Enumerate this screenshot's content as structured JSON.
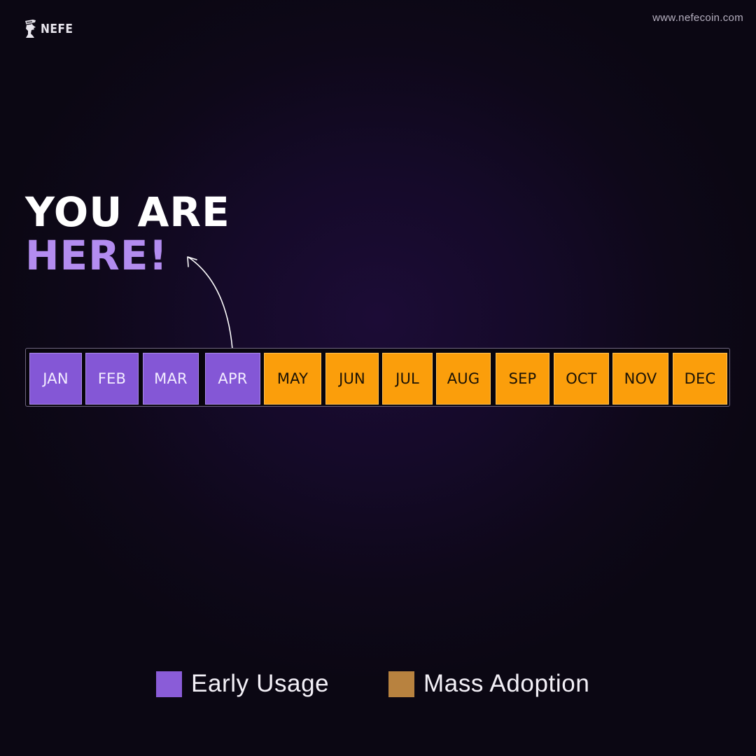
{
  "header": {
    "brand_name": "NEFE",
    "website": "www.nefecoin.com"
  },
  "headline": {
    "line1": "YOU ARE",
    "line2": "HERE!"
  },
  "timeline": {
    "current_month": "APR",
    "months": [
      {
        "label": "JAN",
        "phase": "early"
      },
      {
        "label": "FEB",
        "phase": "early"
      },
      {
        "label": "MAR",
        "phase": "early"
      },
      {
        "label": "APR",
        "phase": "early"
      },
      {
        "label": "MAY",
        "phase": "mass"
      },
      {
        "label": "JUN",
        "phase": "mass"
      },
      {
        "label": "JUL",
        "phase": "mass"
      },
      {
        "label": "AUG",
        "phase": "mass"
      },
      {
        "label": "SEP",
        "phase": "mass"
      },
      {
        "label": "OCT",
        "phase": "mass"
      },
      {
        "label": "NOV",
        "phase": "mass"
      },
      {
        "label": "DEC",
        "phase": "mass"
      }
    ]
  },
  "legend": {
    "early": {
      "label": "Early Usage",
      "color": "#8a5cd8"
    },
    "mass": {
      "label": "Mass Adoption",
      "color": "#b8823f"
    }
  },
  "colors": {
    "background": "#120a22",
    "accent_purple": "#b38cf0",
    "early_cell": "#8457d6",
    "mass_cell": "#fb9e0b"
  },
  "icons": {
    "brand_logo": "nefertiti-head-icon",
    "pointer": "curved-arrow-icon"
  }
}
